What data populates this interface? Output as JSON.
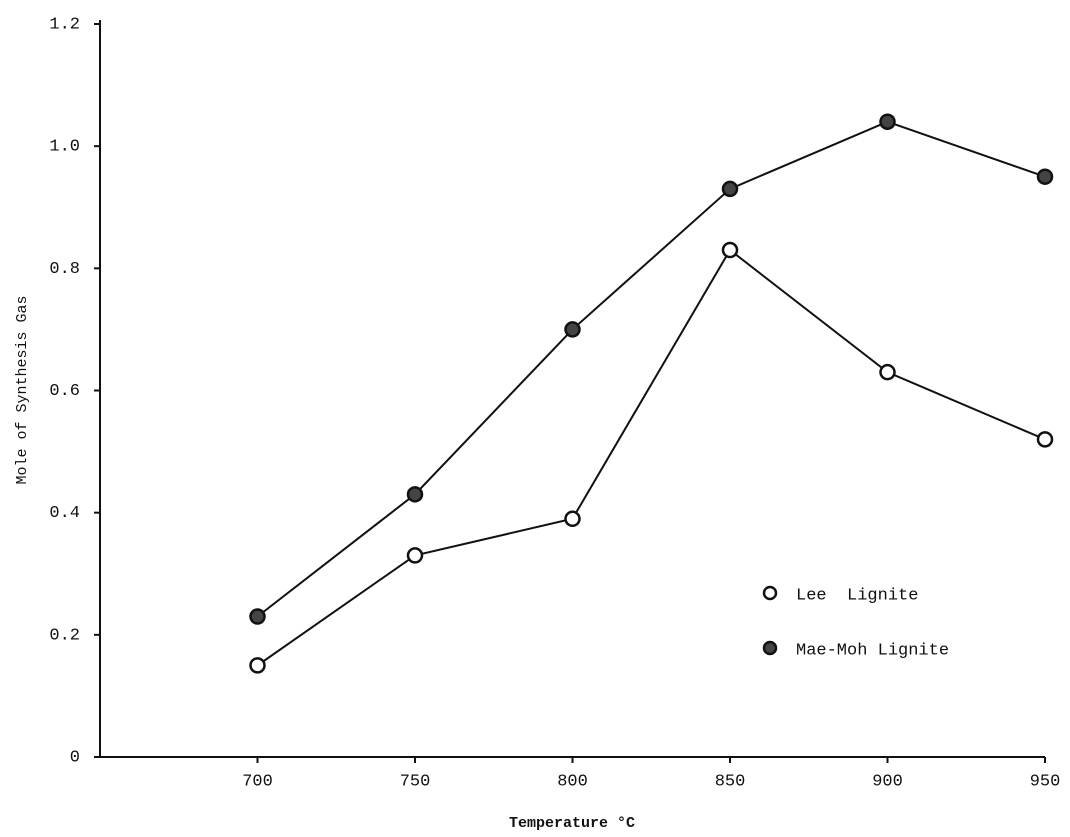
{
  "chart_data": {
    "type": "line",
    "x_label": "Temperature °C",
    "y_label": "Mole of Synthesis Gas",
    "x": [
      700,
      750,
      800,
      850,
      900,
      950
    ],
    "series": [
      {
        "name": "Lee  Lignite",
        "color": "#111111",
        "marker": "open",
        "values": [
          0.15,
          0.33,
          0.39,
          0.83,
          0.63,
          0.52
        ]
      },
      {
        "name": "Mae-Moh Lignite",
        "color": "#111111",
        "marker": "filled",
        "values": [
          0.23,
          0.43,
          0.7,
          0.93,
          1.04,
          0.95
        ]
      }
    ],
    "xlim": [
      650,
      950
    ],
    "xticks": [
      700,
      750,
      800,
      850,
      900,
      950
    ],
    "ylim": [
      0,
      1.2
    ],
    "yticks": [
      0,
      0.2,
      0.4,
      0.6,
      0.8,
      {
        "value": 1,
        "label": "1.0"
      },
      1.2
    ],
    "grid": false,
    "legend": "lower right"
  }
}
